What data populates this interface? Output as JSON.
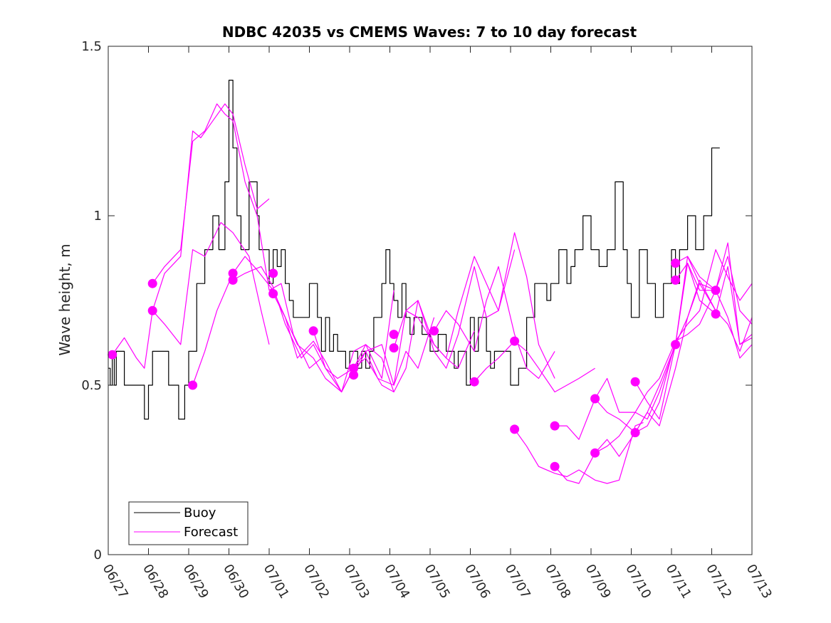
{
  "chart_data": {
    "type": "line",
    "title": "NDBC 42035 vs CMEMS Waves: 7 to 10 day forecast",
    "xlabel": "",
    "ylabel": "Wave height, m",
    "xlim": [
      0,
      16
    ],
    "ylim": [
      0,
      1.5
    ],
    "x_units": "days since 06/27",
    "x_tick_labels": [
      "06/27",
      "06/28",
      "06/29",
      "06/30",
      "07/01",
      "07/02",
      "07/03",
      "07/04",
      "07/05",
      "07/06",
      "07/07",
      "07/08",
      "07/09",
      "07/10",
      "07/11",
      "07/12",
      "07/13"
    ],
    "y_ticks": [
      0,
      0.5,
      1,
      1.5
    ],
    "y_tick_labels": [
      "0",
      "0.5",
      "1",
      "1.5"
    ],
    "grid": false,
    "legend": {
      "position": "bottom-left",
      "entries": [
        {
          "name": "Buoy",
          "color": "#000000"
        },
        {
          "name": "Forecast",
          "color": "#ff00ff"
        }
      ]
    },
    "colors": {
      "buoy": "#000000",
      "forecast": "#ff00ff",
      "axes": "#262626"
    },
    "series": [
      {
        "name": "Buoy",
        "style": "step",
        "x": [
          0.0,
          0.05,
          0.1,
          0.15,
          0.2,
          0.3,
          0.4,
          0.5,
          0.7,
          0.9,
          1.0,
          1.1,
          1.3,
          1.5,
          1.6,
          1.75,
          1.9,
          2.0,
          2.2,
          2.4,
          2.6,
          2.75,
          2.9,
          3.0,
          3.1,
          3.2,
          3.3,
          3.5,
          3.7,
          3.75,
          3.9,
          4.0,
          4.1,
          4.2,
          4.3,
          4.4,
          4.5,
          4.6,
          4.8,
          5.0,
          5.2,
          5.3,
          5.4,
          5.5,
          5.6,
          5.7,
          5.8,
          5.9,
          6.0,
          6.1,
          6.2,
          6.3,
          6.4,
          6.5,
          6.6,
          6.8,
          6.9,
          7.0,
          7.1,
          7.2,
          7.3,
          7.4,
          7.5,
          7.6,
          7.8,
          8.0,
          8.1,
          8.2,
          8.4,
          8.6,
          8.7,
          8.9,
          9.0,
          9.1,
          9.2,
          9.4,
          9.5,
          9.6,
          9.8,
          10.0,
          10.2,
          10.4,
          10.6,
          10.8,
          10.9,
          11.0,
          11.2,
          11.4,
          11.5,
          11.6,
          11.8,
          12.0,
          12.2,
          12.4,
          12.6,
          12.8,
          12.9,
          13.0,
          13.2,
          13.4,
          13.6,
          13.8,
          14.0,
          14.1,
          14.2,
          14.4,
          14.6,
          14.8,
          15.0,
          15.1,
          15.2
        ],
        "y": [
          0.55,
          0.5,
          0.6,
          0.5,
          0.6,
          0.6,
          0.5,
          0.5,
          0.5,
          0.4,
          0.5,
          0.6,
          0.6,
          0.5,
          0.5,
          0.4,
          0.5,
          0.6,
          0.8,
          0.9,
          1.0,
          0.9,
          1.1,
          1.4,
          1.2,
          1.0,
          0.9,
          1.1,
          1.0,
          0.9,
          0.9,
          0.8,
          0.9,
          0.85,
          0.9,
          0.8,
          0.75,
          0.7,
          0.7,
          0.8,
          0.7,
          0.6,
          0.7,
          0.6,
          0.65,
          0.6,
          0.6,
          0.55,
          0.6,
          0.6,
          0.55,
          0.6,
          0.55,
          0.6,
          0.7,
          0.8,
          0.9,
          0.8,
          0.75,
          0.7,
          0.8,
          0.7,
          0.65,
          0.7,
          0.65,
          0.6,
          0.6,
          0.65,
          0.6,
          0.55,
          0.6,
          0.5,
          0.7,
          0.6,
          0.7,
          0.6,
          0.55,
          0.6,
          0.6,
          0.5,
          0.55,
          0.7,
          0.8,
          0.8,
          0.75,
          0.8,
          0.9,
          0.8,
          0.85,
          0.9,
          1.0,
          0.9,
          0.85,
          0.9,
          1.1,
          0.9,
          0.8,
          0.7,
          0.9,
          0.8,
          0.7,
          0.8,
          0.9,
          0.8,
          0.9,
          1.0,
          0.9,
          1.0,
          1.2,
          1.2,
          1.2
        ]
      },
      {
        "name": "Forecast",
        "x": [
          0.1,
          0.4,
          0.7,
          0.9,
          1.1,
          1.4,
          1.8,
          2.1,
          2.3,
          2.6,
          2.9,
          3.1,
          3.4,
          3.7,
          4.0
        ],
        "y": [
          0.59,
          0.64,
          0.58,
          0.55,
          0.72,
          0.83,
          0.88,
          1.25,
          1.23,
          1.28,
          1.33,
          1.3,
          1.15,
          1.02,
          1.05
        ]
      },
      {
        "name": "Forecast",
        "x": [
          1.1,
          1.4,
          1.8,
          2.1,
          2.4,
          2.7,
          2.9,
          3.1,
          3.4,
          3.7,
          4.0,
          4.3,
          4.6,
          5.0,
          5.3
        ],
        "y": [
          0.8,
          0.85,
          0.9,
          1.22,
          1.25,
          1.33,
          1.3,
          1.28,
          1.1,
          1.0,
          0.78,
          0.8,
          0.65,
          0.55,
          0.58
        ]
      },
      {
        "name": "Forecast",
        "x": [
          1.1,
          1.4,
          1.8,
          2.1,
          2.4,
          2.8,
          3.1,
          3.5,
          3.8,
          4.0
        ],
        "y": [
          0.72,
          0.68,
          0.62,
          0.9,
          0.88,
          0.98,
          0.95,
          0.88,
          0.72,
          0.62
        ]
      },
      {
        "name": "Forecast",
        "x": [
          2.1,
          2.4,
          2.7,
          3.1,
          3.4,
          3.7,
          4.1,
          4.4,
          4.7,
          5.1,
          5.4,
          5.8,
          6.1,
          6.4,
          6.8,
          7.1
        ],
        "y": [
          0.5,
          0.6,
          0.72,
          0.83,
          0.88,
          0.84,
          0.78,
          0.7,
          0.62,
          0.58,
          0.52,
          0.48,
          0.55,
          0.58,
          0.5,
          0.48
        ]
      },
      {
        "name": "Forecast",
        "x": [
          3.1,
          3.4,
          3.8,
          4.1,
          4.4,
          4.8,
          5.1,
          5.4,
          5.8,
          6.1,
          6.4,
          6.8,
          7.1
        ],
        "y": [
          0.81,
          0.83,
          0.85,
          0.79,
          0.68,
          0.58,
          0.62,
          0.55,
          0.48,
          0.6,
          0.62,
          0.52,
          0.78
        ]
      },
      {
        "name": "Forecast",
        "x": [
          4.1,
          4.4,
          4.7,
          5.1,
          5.4,
          5.8,
          6.1,
          6.4,
          6.7,
          7.1,
          7.4,
          7.7,
          8.1
        ],
        "y": [
          0.77,
          0.7,
          0.58,
          0.63,
          0.57,
          0.48,
          0.55,
          0.6,
          0.52,
          0.5,
          0.6,
          0.55,
          0.7
        ]
      },
      {
        "name": "Forecast",
        "x": [
          5.1,
          5.4,
          5.7,
          6.1,
          6.4,
          6.8,
          7.1,
          7.4,
          7.7,
          8.1,
          8.4,
          8.7,
          9.1
        ],
        "y": [
          0.66,
          0.55,
          0.52,
          0.55,
          0.62,
          0.58,
          0.48,
          0.55,
          0.75,
          0.62,
          0.58,
          0.55,
          0.66
        ]
      },
      {
        "name": "Forecast",
        "x": [
          6.1,
          6.4,
          6.8,
          7.1,
          7.4,
          7.7,
          8.1,
          8.4,
          8.7,
          9.1,
          9.4,
          9.7,
          10.1
        ],
        "y": [
          0.53,
          0.6,
          0.62,
          0.5,
          0.72,
          0.75,
          0.6,
          0.55,
          0.65,
          0.85,
          0.7,
          0.72,
          0.9
        ]
      },
      {
        "name": "Forecast",
        "x": [
          7.1,
          7.4,
          7.7,
          8.1,
          8.4,
          8.7,
          9.1,
          9.4,
          9.7,
          10.1,
          10.4,
          10.7,
          11.1
        ],
        "y": [
          0.61,
          0.72,
          0.7,
          0.62,
          0.58,
          0.72,
          0.88,
          0.8,
          0.72,
          0.95,
          0.82,
          0.62,
          0.52
        ]
      },
      {
        "name": "Forecast",
        "x": [
          8.1,
          8.4,
          8.7,
          9.1,
          9.4,
          9.7,
          10.1,
          10.4,
          10.7,
          11.1
        ],
        "y": [
          0.66,
          0.72,
          0.68,
          0.6,
          0.75,
          0.85,
          0.65,
          0.55,
          0.52,
          0.6
        ]
      },
      {
        "name": "Forecast",
        "x": [
          9.1,
          9.4,
          9.7,
          10.1,
          10.4,
          10.7,
          11.1,
          11.4,
          11.7,
          12.1
        ],
        "y": [
          0.51,
          0.55,
          0.58,
          0.63,
          0.6,
          0.55,
          0.48,
          0.5,
          0.52,
          0.55
        ]
      },
      {
        "name": "Forecast",
        "x": [
          10.1,
          10.4,
          10.7,
          11.1,
          11.4,
          11.7,
          12.1,
          12.4,
          12.7,
          13.1,
          13.3
        ],
        "y": [
          0.37,
          0.32,
          0.26,
          0.24,
          0.23,
          0.25,
          0.22,
          0.21,
          0.22,
          0.38,
          0.39
        ]
      },
      {
        "name": "Forecast",
        "x": [
          11.1,
          11.4,
          11.7,
          12.1,
          12.4,
          12.7,
          13.1,
          13.4,
          13.7,
          14.1,
          14.4,
          14.7,
          15.1
        ],
        "y": [
          0.38,
          0.38,
          0.34,
          0.46,
          0.52,
          0.42,
          0.42,
          0.48,
          0.52,
          0.63,
          0.65,
          0.68,
          0.78
        ]
      },
      {
        "name": "Forecast",
        "x": [
          11.1,
          11.4,
          11.7,
          12.1,
          12.4,
          12.7,
          13.1,
          13.4,
          13.7,
          14.1,
          14.4,
          14.7,
          15.1
        ],
        "y": [
          0.26,
          0.22,
          0.21,
          0.3,
          0.32,
          0.35,
          0.42,
          0.4,
          0.48,
          0.62,
          0.7,
          0.8,
          0.72
        ]
      },
      {
        "name": "Forecast",
        "x": [
          12.1,
          12.4,
          12.7,
          13.1,
          13.4,
          13.7,
          14.1,
          14.4,
          14.7,
          15.1,
          15.4,
          15.7,
          16.0
        ],
        "y": [
          0.46,
          0.42,
          0.4,
          0.36,
          0.38,
          0.45,
          0.63,
          0.68,
          0.72,
          0.9,
          0.82,
          0.75,
          0.8
        ]
      },
      {
        "name": "Forecast",
        "x": [
          12.1,
          12.4,
          12.7,
          13.1,
          13.4,
          13.7,
          14.1,
          14.4,
          14.7,
          15.1,
          15.4,
          15.7,
          16.0
        ],
        "y": [
          0.3,
          0.34,
          0.29,
          0.36,
          0.42,
          0.5,
          0.62,
          0.88,
          0.8,
          0.78,
          0.92,
          0.62,
          0.65
        ]
      },
      {
        "name": "Forecast",
        "x": [
          13.1,
          13.4,
          13.7,
          14.1,
          14.4,
          14.7,
          15.1,
          15.4,
          15.7,
          16.0
        ],
        "y": [
          0.51,
          0.45,
          0.4,
          0.62,
          0.86,
          0.78,
          0.78,
          0.88,
          0.72,
          0.68
        ]
      },
      {
        "name": "Forecast",
        "x": [
          13.1,
          13.4,
          13.7,
          14.1,
          14.4,
          14.7,
          15.1,
          15.4,
          15.7,
          16.0
        ],
        "y": [
          0.36,
          0.42,
          0.38,
          0.55,
          0.7,
          0.81,
          0.72,
          0.68,
          0.6,
          0.7
        ]
      },
      {
        "name": "Forecast",
        "x": [
          14.1,
          14.4,
          14.7,
          15.1,
          15.4,
          15.7,
          16.0
        ],
        "y": [
          0.81,
          0.86,
          0.75,
          0.71,
          0.85,
          0.62,
          0.64
        ]
      },
      {
        "name": "Forecast",
        "x": [
          14.1,
          14.4,
          14.7,
          15.1,
          15.4,
          15.7,
          16.0
        ],
        "y": [
          0.86,
          0.88,
          0.82,
          0.78,
          0.7,
          0.58,
          0.62
        ]
      }
    ],
    "markers": {
      "name": "Forecast",
      "x": [
        0.1,
        1.1,
        1.1,
        2.1,
        3.1,
        3.1,
        4.1,
        4.1,
        5.1,
        6.1,
        6.1,
        7.1,
        7.1,
        8.1,
        9.1,
        10.1,
        10.1,
        11.1,
        11.1,
        12.1,
        12.1,
        13.1,
        13.1,
        14.1,
        14.1,
        14.1,
        15.1,
        15.1
      ],
      "y": [
        0.59,
        0.8,
        0.72,
        0.5,
        0.83,
        0.81,
        0.83,
        0.77,
        0.66,
        0.55,
        0.53,
        0.65,
        0.61,
        0.66,
        0.51,
        0.63,
        0.37,
        0.38,
        0.26,
        0.46,
        0.3,
        0.51,
        0.36,
        0.62,
        0.81,
        0.86,
        0.78,
        0.71
      ]
    }
  }
}
